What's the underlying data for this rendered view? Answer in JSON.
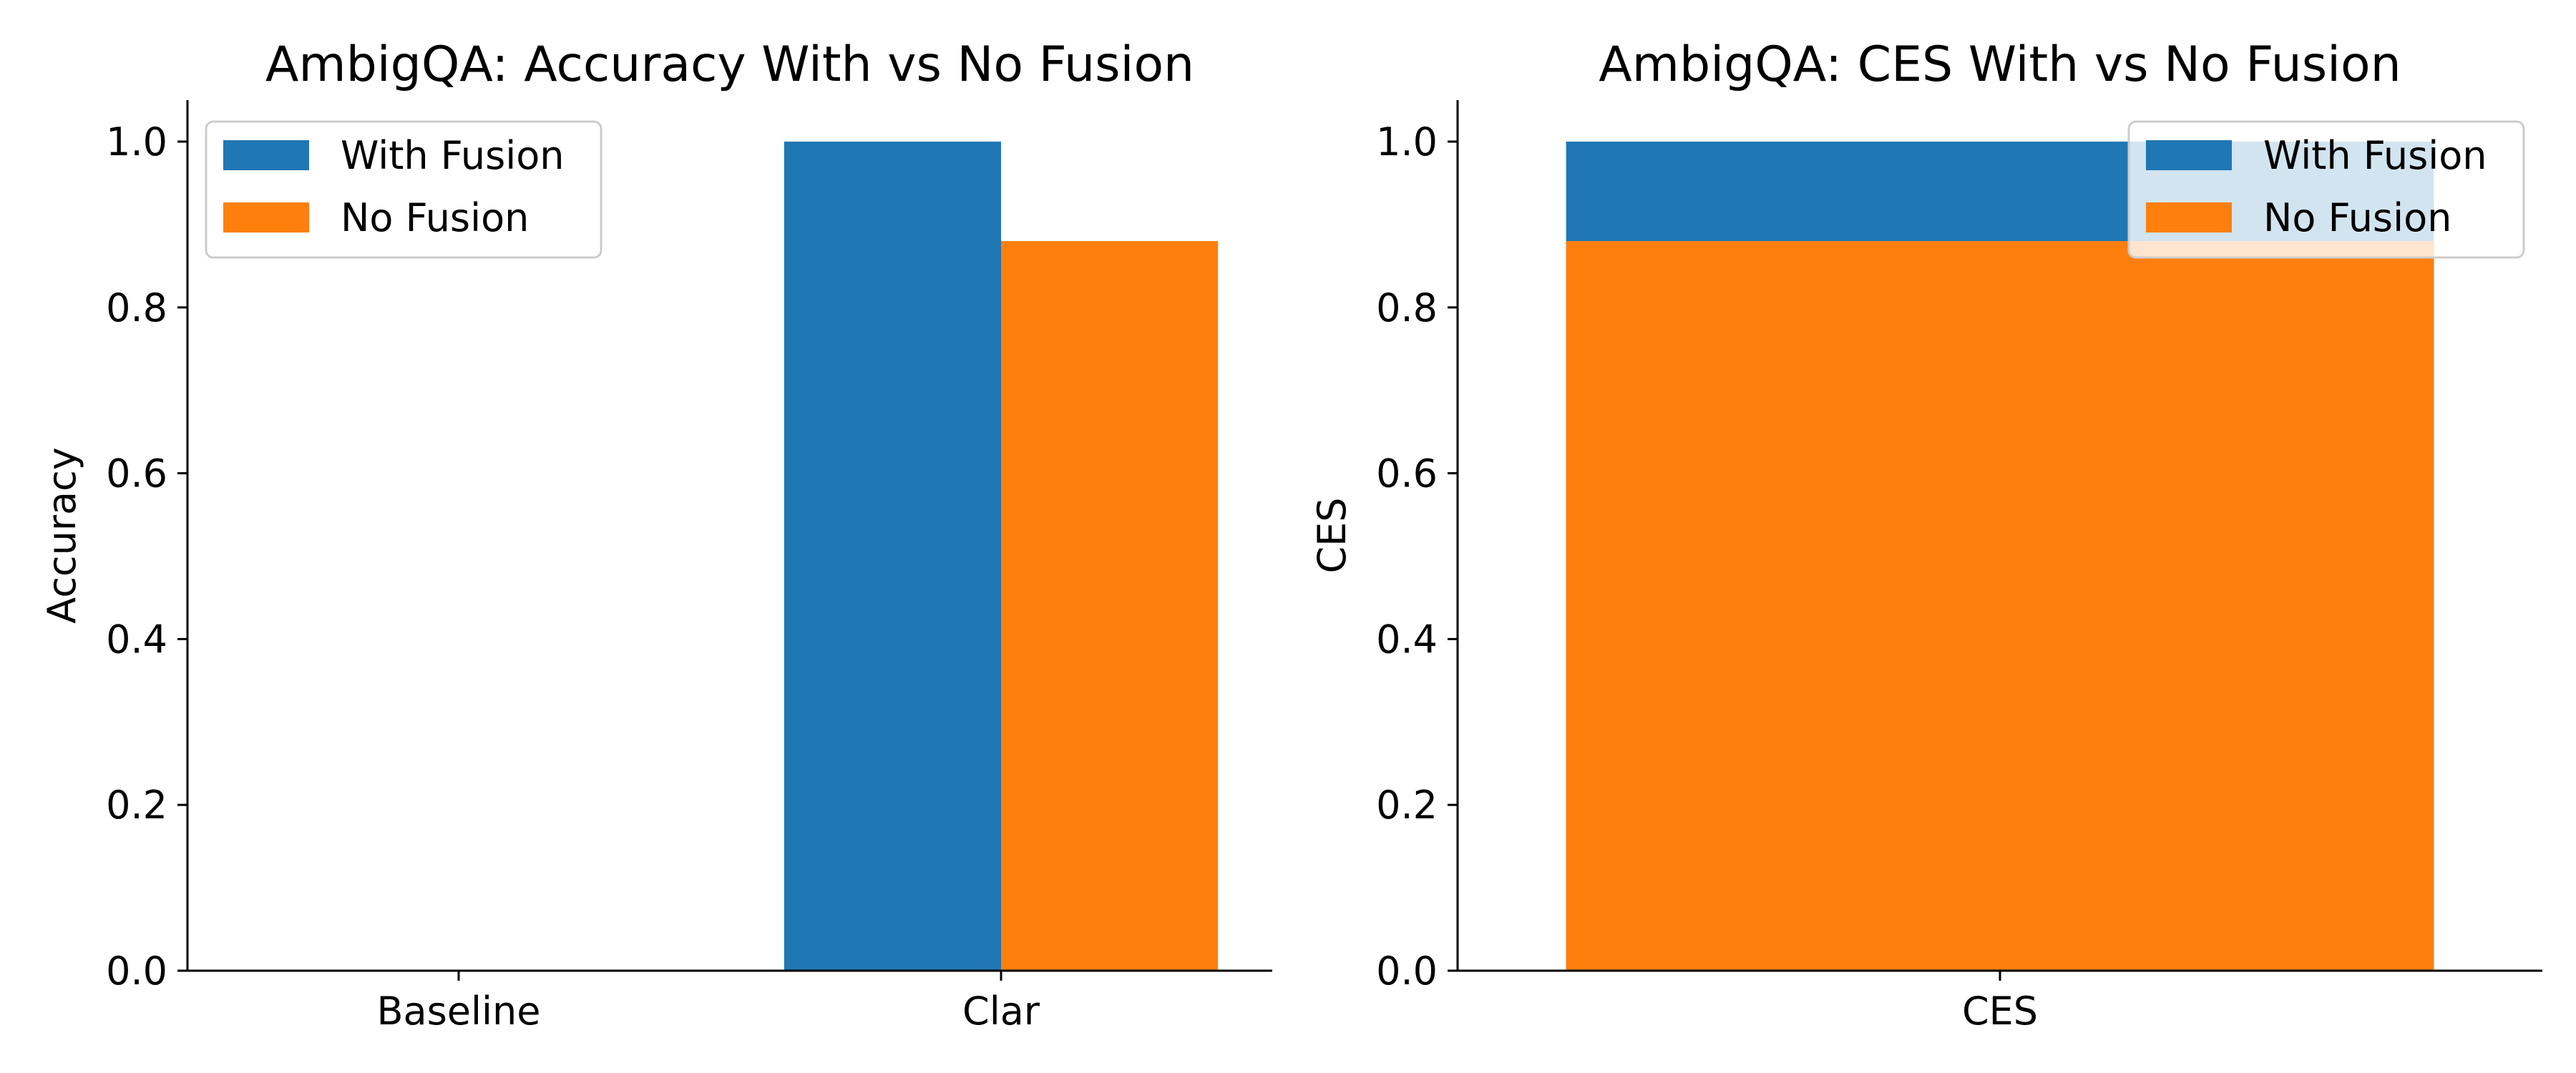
{
  "chart_data": [
    {
      "type": "bar",
      "title": "AmbigQA: Accuracy With vs No Fusion",
      "xlabel": "",
      "ylabel": "Accuracy",
      "categories": [
        "Baseline",
        "Clar"
      ],
      "series": [
        {
          "name": "With Fusion",
          "color": "#1f77b4",
          "values": [
            0.0,
            1.0
          ]
        },
        {
          "name": "No Fusion",
          "color": "#ff7f0e",
          "values": [
            0.0,
            0.88
          ]
        }
      ],
      "ylim": [
        0,
        1.05
      ],
      "yticks": [
        "0.0",
        "0.2",
        "0.4",
        "0.6",
        "0.8",
        "1.0"
      ],
      "grid": false,
      "legend": "upper-left",
      "bar_mode": "grouped"
    },
    {
      "type": "bar",
      "title": "AmbigQA: CES With vs No Fusion",
      "xlabel": "",
      "ylabel": "CES",
      "categories": [
        "CES"
      ],
      "series": [
        {
          "name": "With Fusion",
          "color": "#1f77b4",
          "values": [
            1.0
          ]
        },
        {
          "name": "No Fusion",
          "color": "#ff7f0e",
          "values": [
            0.88
          ]
        }
      ],
      "ylim": [
        0,
        1.05
      ],
      "yticks": [
        "0.0",
        "0.2",
        "0.4",
        "0.6",
        "0.8",
        "1.0"
      ],
      "grid": false,
      "legend": "upper-right",
      "bar_mode": "overlaid"
    }
  ]
}
